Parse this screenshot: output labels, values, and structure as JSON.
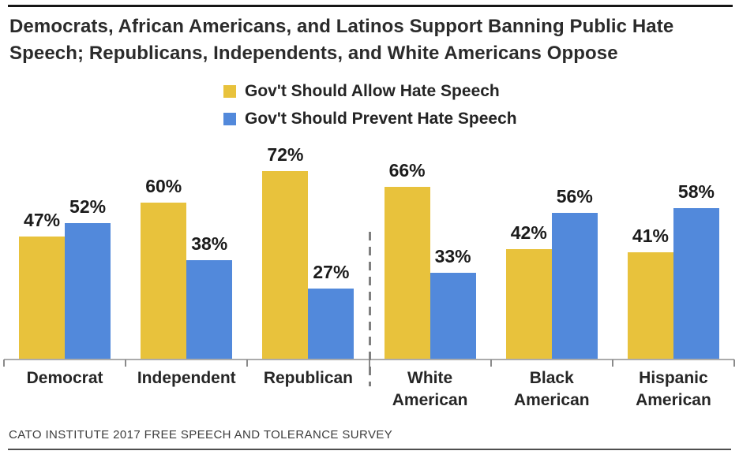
{
  "chart_data": {
    "type": "bar",
    "title": "Democrats, African Americans, and Latinos Support Banning Public Hate Speech; Republicans, Independents, and White Americans Oppose",
    "title_lines": [
      "Democrats, African Americans, and Latinos Support Banning Public Hate",
      "Speech; Republicans, Independents, and White Americans Oppose"
    ],
    "categories": [
      "Democrat",
      "Independent",
      "Republican",
      "White American",
      "Black American",
      "Hispanic American"
    ],
    "series": [
      {
        "name": "Gov't Should Allow Hate Speech",
        "key": "allow",
        "color": "#E8C23C",
        "values": [
          47,
          60,
          72,
          66,
          42,
          41
        ],
        "labels": [
          "47%",
          "60%",
          "72%",
          "66%",
          "42%",
          "41%"
        ]
      },
      {
        "name": "Gov't Should Prevent Hate Speech",
        "key": "prevent",
        "color": "#5289DB",
        "values": [
          52,
          38,
          27,
          33,
          56,
          58
        ],
        "labels": [
          "52%",
          "38%",
          "27%",
          "33%",
          "56%",
          "58%"
        ]
      }
    ],
    "ylim": [
      0,
      100
    ],
    "grid": false,
    "legend_position": "top-center",
    "divider_between": [
      "Republican",
      "White American"
    ],
    "divider_color": "#7F7F7F",
    "axis_color": "#ABABAB",
    "source": "CATO INSTITUTE 2017 FREE SPEECH AND TOLERANCE SURVEY"
  }
}
